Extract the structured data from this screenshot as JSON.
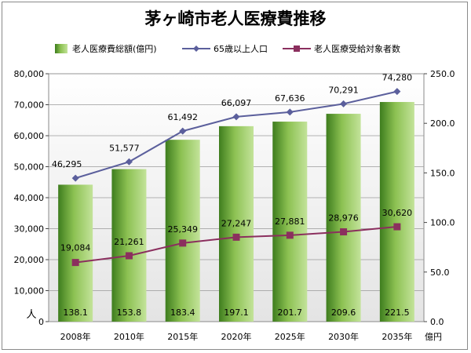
{
  "chart_data": {
    "type": "bar",
    "title": "茅ヶ崎市老人医療費推移",
    "categories": [
      "2008年",
      "2010年",
      "2015年",
      "2020年",
      "2025年",
      "2030年",
      "2035年"
    ],
    "series": [
      {
        "name": "老人医療費総額(億円)",
        "type": "bar",
        "axis": "right",
        "values": [
          138.1,
          153.8,
          183.4,
          197.1,
          201.7,
          209.6,
          221.5
        ],
        "labels": [
          "138.1",
          "153.8",
          "183.4",
          "197.1",
          "201.7",
          "209.6",
          "221.5"
        ],
        "color": "#7cb342"
      },
      {
        "name": "65歳以上人口",
        "type": "line",
        "axis": "left",
        "values": [
          46295,
          51577,
          61492,
          66097,
          67636,
          70291,
          74280
        ],
        "labels": [
          "46,295",
          "51,577",
          "61,492",
          "66,097",
          "67,636",
          "70,291",
          "74,280"
        ],
        "color": "#5b5f9c",
        "marker": "diamond"
      },
      {
        "name": "老人医療受給対象者数",
        "type": "line",
        "axis": "left",
        "values": [
          19084,
          21261,
          25349,
          27247,
          27881,
          28976,
          30620
        ],
        "labels": [
          "19,084",
          "21,261",
          "25,349",
          "27,247",
          "27,881",
          "28,976",
          "30,620"
        ],
        "color": "#8b2f5e",
        "marker": "square"
      }
    ],
    "left_axis": {
      "unit": "人",
      "ylim": [
        0,
        80000
      ],
      "ticks": [
        "0",
        "10,000",
        "20,000",
        "30,000",
        "40,000",
        "50,000",
        "60,000",
        "70,000",
        "80,000"
      ]
    },
    "right_axis": {
      "unit": "億円",
      "ylim": [
        0,
        250
      ],
      "ticks": [
        "0.0",
        "50.0",
        "100.0",
        "150.0",
        "200.0",
        "250.0"
      ]
    },
    "grid": true,
    "legend_position": "top"
  }
}
